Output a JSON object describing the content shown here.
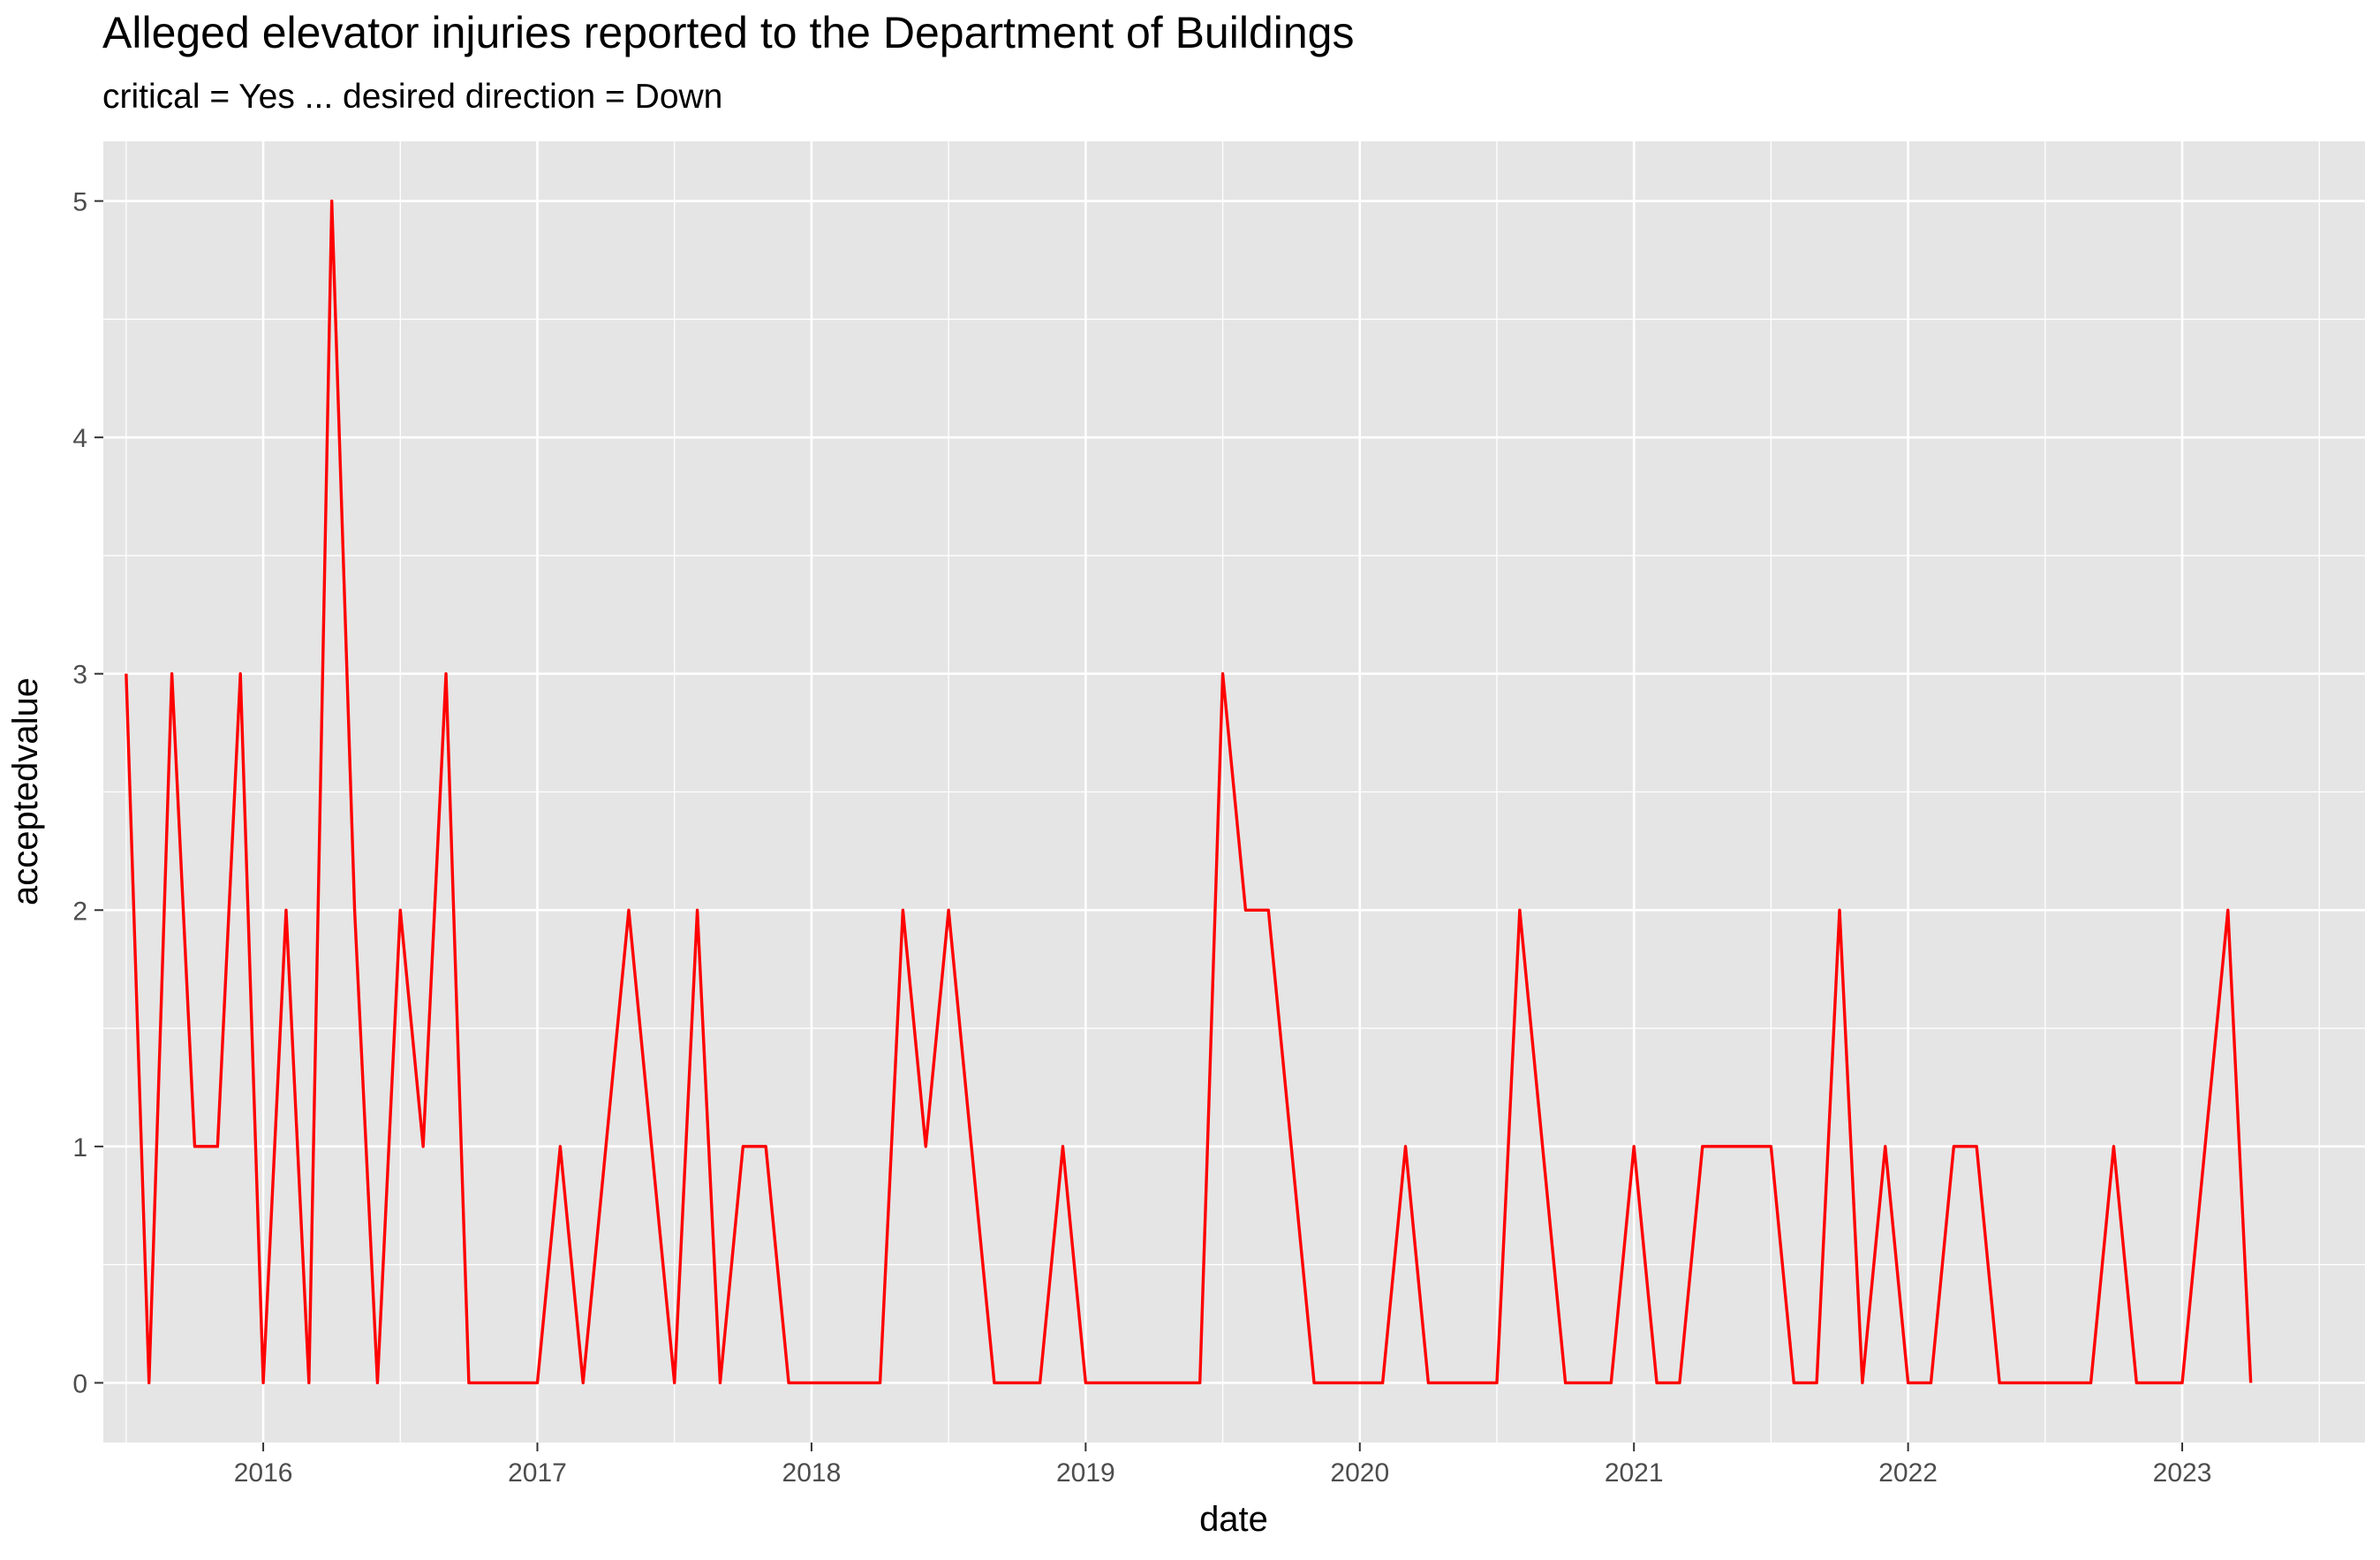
{
  "title": "Alleged elevator injuries reported to the Department of Buildings",
  "subtitle": "critical = Yes ... desired direction = Down",
  "chart_data": {
    "type": "line",
    "title": "Alleged elevator injuries reported to the Department of Buildings",
    "subtitle": "critical = Yes ... desired direction = Down",
    "xlabel": "date",
    "ylabel": "acceptedvalue",
    "x_ticks": [
      "2016",
      "2017",
      "2018",
      "2019",
      "2020",
      "2021",
      "2022",
      "2023"
    ],
    "y_ticks": [
      0,
      1,
      2,
      3,
      4,
      5
    ],
    "xlim": [
      "2015-06-01",
      "2023-09-01"
    ],
    "ylim": [
      0,
      5
    ],
    "grid": true,
    "line_color": "#FF0000",
    "panel_color": "#E5E5E5",
    "series": [
      {
        "values": [
          [
            "2015-07",
            3
          ],
          [
            "2015-08",
            0
          ],
          [
            "2015-09",
            3
          ],
          [
            "2015-10",
            1
          ],
          [
            "2015-11",
            1
          ],
          [
            "2015-12",
            3
          ],
          [
            "2016-01",
            0
          ],
          [
            "2016-02",
            2
          ],
          [
            "2016-03",
            0
          ],
          [
            "2016-04",
            5
          ],
          [
            "2016-05",
            2
          ],
          [
            "2016-06",
            0
          ],
          [
            "2016-07",
            2
          ],
          [
            "2016-08",
            1
          ],
          [
            "2016-09",
            3
          ],
          [
            "2016-10",
            0
          ],
          [
            "2016-11",
            0
          ],
          [
            "2016-12",
            0
          ],
          [
            "2017-01",
            0
          ],
          [
            "2017-02",
            1
          ],
          [
            "2017-03",
            0
          ],
          [
            "2017-04",
            1
          ],
          [
            "2017-05",
            2
          ],
          [
            "2017-06",
            1
          ],
          [
            "2017-07",
            0
          ],
          [
            "2017-08",
            2
          ],
          [
            "2017-09",
            0
          ],
          [
            "2017-10",
            1
          ],
          [
            "2017-11",
            1
          ],
          [
            "2017-12",
            0
          ],
          [
            "2018-01",
            0
          ],
          [
            "2018-02",
            0
          ],
          [
            "2018-03",
            0
          ],
          [
            "2018-04",
            0
          ],
          [
            "2018-05",
            2
          ],
          [
            "2018-06",
            1
          ],
          [
            "2018-07",
            2
          ],
          [
            "2018-08",
            1
          ],
          [
            "2018-09",
            0
          ],
          [
            "2018-10",
            0
          ],
          [
            "2018-11",
            0
          ],
          [
            "2018-12",
            1
          ],
          [
            "2019-01",
            0
          ],
          [
            "2019-02",
            0
          ],
          [
            "2019-03",
            0
          ],
          [
            "2019-04",
            0
          ],
          [
            "2019-05",
            0
          ],
          [
            "2019-06",
            0
          ],
          [
            "2019-07",
            3
          ],
          [
            "2019-08",
            2
          ],
          [
            "2019-09",
            2
          ],
          [
            "2019-10",
            1
          ],
          [
            "2019-11",
            0
          ],
          [
            "2019-12",
            0
          ],
          [
            "2020-01",
            0
          ],
          [
            "2020-02",
            0
          ],
          [
            "2020-03",
            1
          ],
          [
            "2020-04",
            0
          ],
          [
            "2020-05",
            0
          ],
          [
            "2020-06",
            0
          ],
          [
            "2020-07",
            0
          ],
          [
            "2020-08",
            2
          ],
          [
            "2020-09",
            1
          ],
          [
            "2020-10",
            0
          ],
          [
            "2020-11",
            0
          ],
          [
            "2020-12",
            0
          ],
          [
            "2021-01",
            1
          ],
          [
            "2021-02",
            0
          ],
          [
            "2021-03",
            0
          ],
          [
            "2021-04",
            1
          ],
          [
            "2021-05",
            1
          ],
          [
            "2021-06",
            1
          ],
          [
            "2021-07",
            1
          ],
          [
            "2021-08",
            0
          ],
          [
            "2021-09",
            0
          ],
          [
            "2021-10",
            2
          ],
          [
            "2021-11",
            0
          ],
          [
            "2021-12",
            1
          ],
          [
            "2022-01",
            0
          ],
          [
            "2022-02",
            0
          ],
          [
            "2022-03",
            1
          ],
          [
            "2022-04",
            1
          ],
          [
            "2022-05",
            0
          ],
          [
            "2022-06",
            0
          ],
          [
            "2022-07",
            0
          ],
          [
            "2022-08",
            0
          ],
          [
            "2022-09",
            0
          ],
          [
            "2022-10",
            1
          ],
          [
            "2022-11",
            0
          ],
          [
            "2022-12",
            0
          ],
          [
            "2023-01",
            0
          ],
          [
            "2023-02",
            1
          ],
          [
            "2023-03",
            2
          ],
          [
            "2023-04",
            0
          ]
        ]
      }
    ]
  }
}
